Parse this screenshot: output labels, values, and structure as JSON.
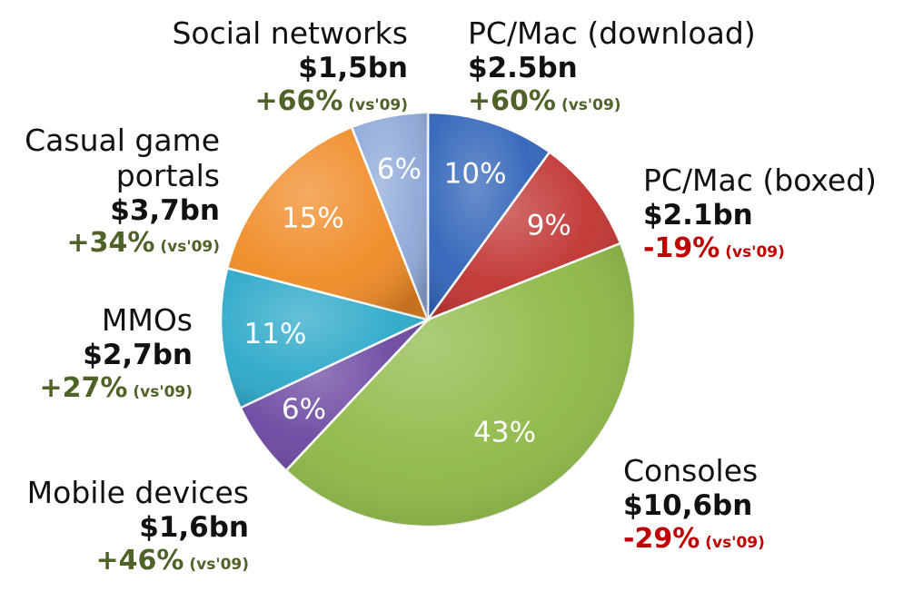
{
  "chart_data": {
    "type": "pie",
    "start_angle_deg": 0,
    "direction": "clockwise",
    "slices": [
      {
        "label": "PC/Mac (download)",
        "value": 10,
        "value_label": "10%",
        "revenue": "$2.5bn",
        "change": "+60%",
        "change_note": "(vs'09)",
        "color": "#2E62B8",
        "change_color": "#4F6228"
      },
      {
        "label": "PC/Mac (boxed)",
        "value": 9,
        "value_label": "9%",
        "revenue": "$2.1bn",
        "change": "-19%",
        "change_note": "(vs'09)",
        "color": "#C0322F",
        "change_color": "#C00000"
      },
      {
        "label": "Consoles",
        "value": 43,
        "value_label": "43%",
        "revenue": "$10,6bn",
        "change": "-29%",
        "change_note": "(vs'09)",
        "color": "#8DB844",
        "change_color": "#C00000"
      },
      {
        "label": "Mobile devices",
        "value": 6,
        "value_label": "6%",
        "revenue": "$1,6bn",
        "change": "+46%",
        "change_note": "(vs'09)",
        "color": "#6A46A0",
        "change_color": "#4F6228"
      },
      {
        "label": "MMOs",
        "value": 11,
        "value_label": "11%",
        "revenue": "$2,7bn",
        "change": "+27%",
        "change_note": "(vs'09)",
        "color": "#2AA8C8",
        "change_color": "#4F6228"
      },
      {
        "label": "Casual game portals",
        "value": 15,
        "value_label": "15%",
        "revenue": "$3,7bn",
        "change": "+34%",
        "change_note": "(vs'09)",
        "color": "#F08A24",
        "change_color": "#4F6228"
      },
      {
        "label": "Social networks",
        "value": 6,
        "value_label": "6%",
        "revenue": "$1,5bn",
        "change": "+66%",
        "change_note": "(vs'09)",
        "color": "#8DA8D8",
        "change_color": "#4F6228"
      }
    ]
  },
  "labels": [
    {
      "name_lines": [
        "Social networks"
      ]
    },
    {
      "name_lines": [
        "PC/Mac (download)"
      ]
    },
    {
      "name_lines": [
        "PC/Mac (boxed)"
      ]
    },
    {
      "name_lines": [
        "Casual game",
        "portals"
      ]
    },
    {
      "name_lines": [
        "MMOs"
      ]
    },
    {
      "name_lines": [
        "Consoles"
      ]
    },
    {
      "name_lines": [
        "Mobile devices"
      ]
    }
  ]
}
